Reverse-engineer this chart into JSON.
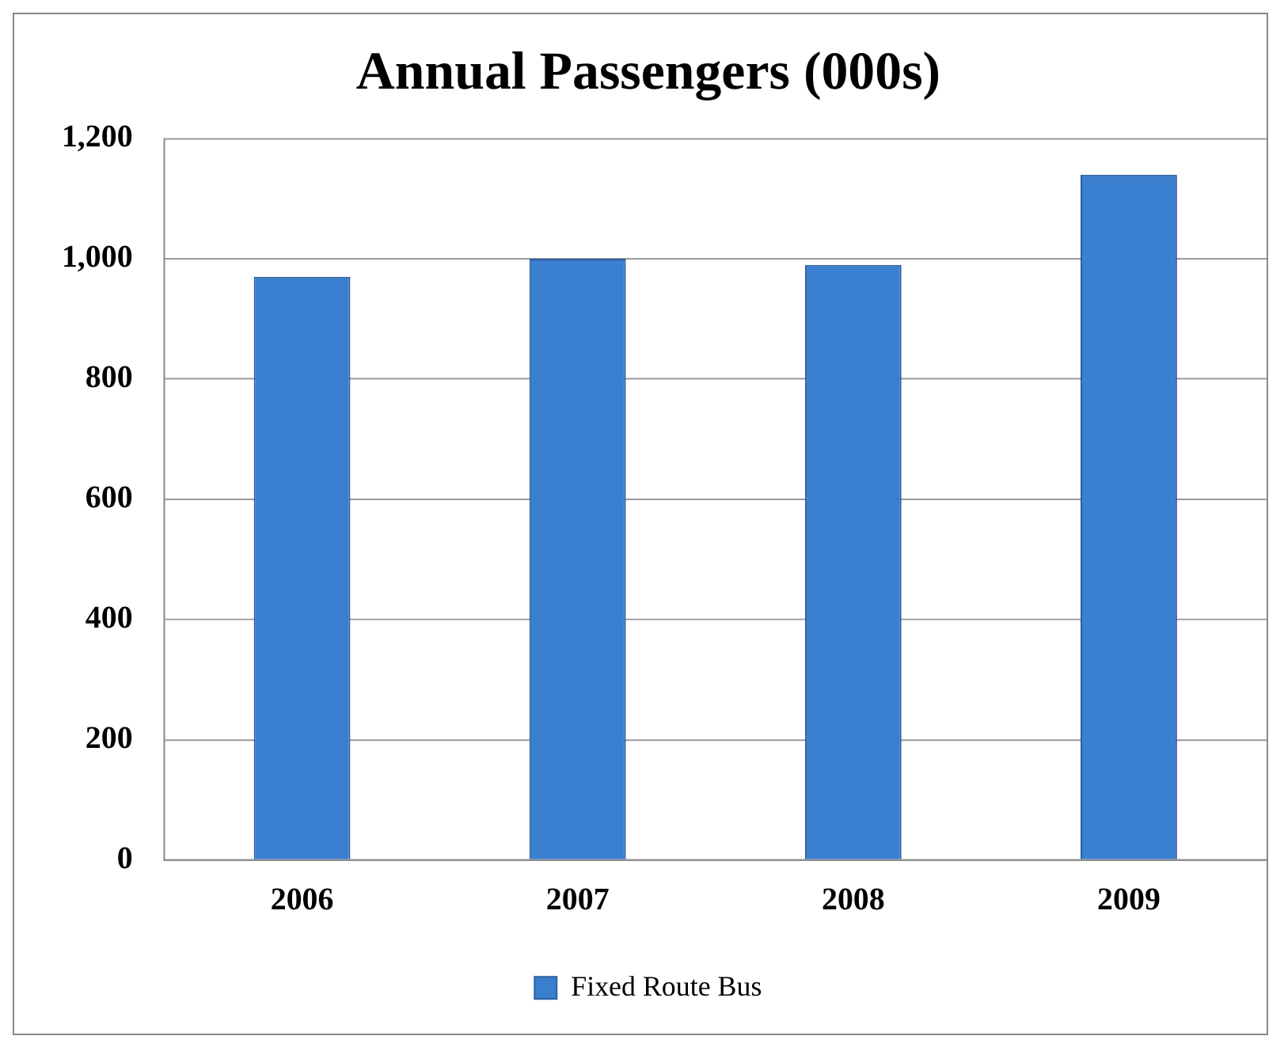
{
  "chart_data": {
    "type": "bar",
    "title": "Annual Passengers (000s)",
    "categories": [
      "2006",
      "2007",
      "2008",
      "2009"
    ],
    "series": [
      {
        "name": "Fixed Route Bus",
        "color": "#3a7fd0",
        "values": [
          970,
          1000,
          990,
          1140
        ]
      }
    ],
    "ylim": [
      0,
      1200
    ],
    "yticks": [
      0,
      200,
      400,
      600,
      800,
      {
        "value": 1000,
        "label": "1,000"
      },
      {
        "value": 1200,
        "label": "1,200"
      }
    ],
    "grid": "y",
    "legend": "bottom"
  }
}
